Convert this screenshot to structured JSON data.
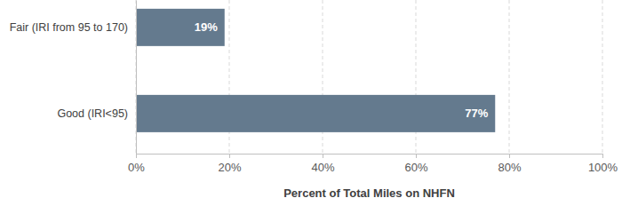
{
  "chart_data": {
    "type": "bar",
    "orientation": "horizontal",
    "categories": [
      "Fair (IRI from 95 to 170)",
      "Good (IRI<95)"
    ],
    "values": [
      19,
      77
    ],
    "value_labels": [
      "19%",
      "77%"
    ],
    "data_labels": true,
    "color": "#647a8e",
    "x_label": "Percent of Total Miles on NHFN",
    "xlim": [
      0,
      100
    ],
    "xticks": [
      {
        "value": 0,
        "label": "0%"
      },
      {
        "value": 20,
        "label": "20%"
      },
      {
        "value": 40,
        "label": "40%"
      },
      {
        "value": 60,
        "label": "60%"
      },
      {
        "value": 80,
        "label": "80%"
      },
      {
        "value": 100,
        "label": "100%"
      }
    ],
    "grid": true
  }
}
